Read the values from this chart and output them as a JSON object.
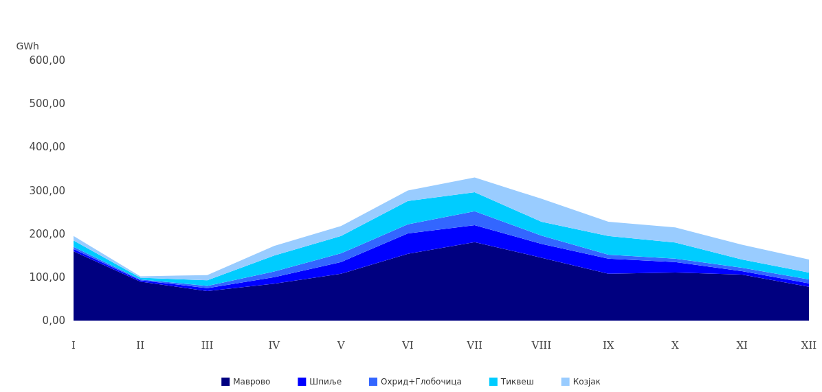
{
  "chart_data": {
    "type": "area",
    "stacked": true,
    "ylabel": "GWh",
    "categories": [
      "I",
      "II",
      "III",
      "IV",
      "V",
      "VI",
      "VII",
      "VIII",
      "IX",
      "X",
      "XI",
      "XII"
    ],
    "series": [
      {
        "name": "Маврово",
        "color": "#000080",
        "values": [
          160,
          90,
          68,
          85,
          108,
          154,
          181,
          145,
          108,
          111,
          106,
          78
        ]
      },
      {
        "name": "Шпиље",
        "color": "#0000ff",
        "values": [
          5,
          3,
          7,
          15,
          27,
          47,
          39,
          32,
          35,
          24,
          8,
          8
        ]
      },
      {
        "name": "Охрид+Глобочица",
        "color": "#3366ff",
        "values": [
          5,
          2,
          5,
          13,
          20,
          21,
          32,
          19,
          9,
          8,
          8,
          9
        ]
      },
      {
        "name": "Тиквеш",
        "color": "#00ccff",
        "values": [
          15,
          4,
          13,
          37,
          40,
          54,
          44,
          32,
          43,
          37,
          19,
          16
        ]
      },
      {
        "name": "Козјак",
        "color": "#99ccff",
        "values": [
          10,
          3,
          12,
          22,
          23,
          24,
          34,
          53,
          33,
          35,
          34,
          30
        ]
      }
    ],
    "ylim": [
      0,
      600
    ],
    "yticks": [
      {
        "value": 0,
        "label": "0,00"
      },
      {
        "value": 100,
        "label": "100,00"
      },
      {
        "value": 200,
        "label": "200,00"
      },
      {
        "value": 300,
        "label": "300,00"
      },
      {
        "value": 400,
        "label": "400,00"
      },
      {
        "value": 500,
        "label": "500,00"
      },
      {
        "value": 600,
        "label": "600,00"
      }
    ],
    "grid": false,
    "legend": "bottom",
    "marker": "none"
  }
}
